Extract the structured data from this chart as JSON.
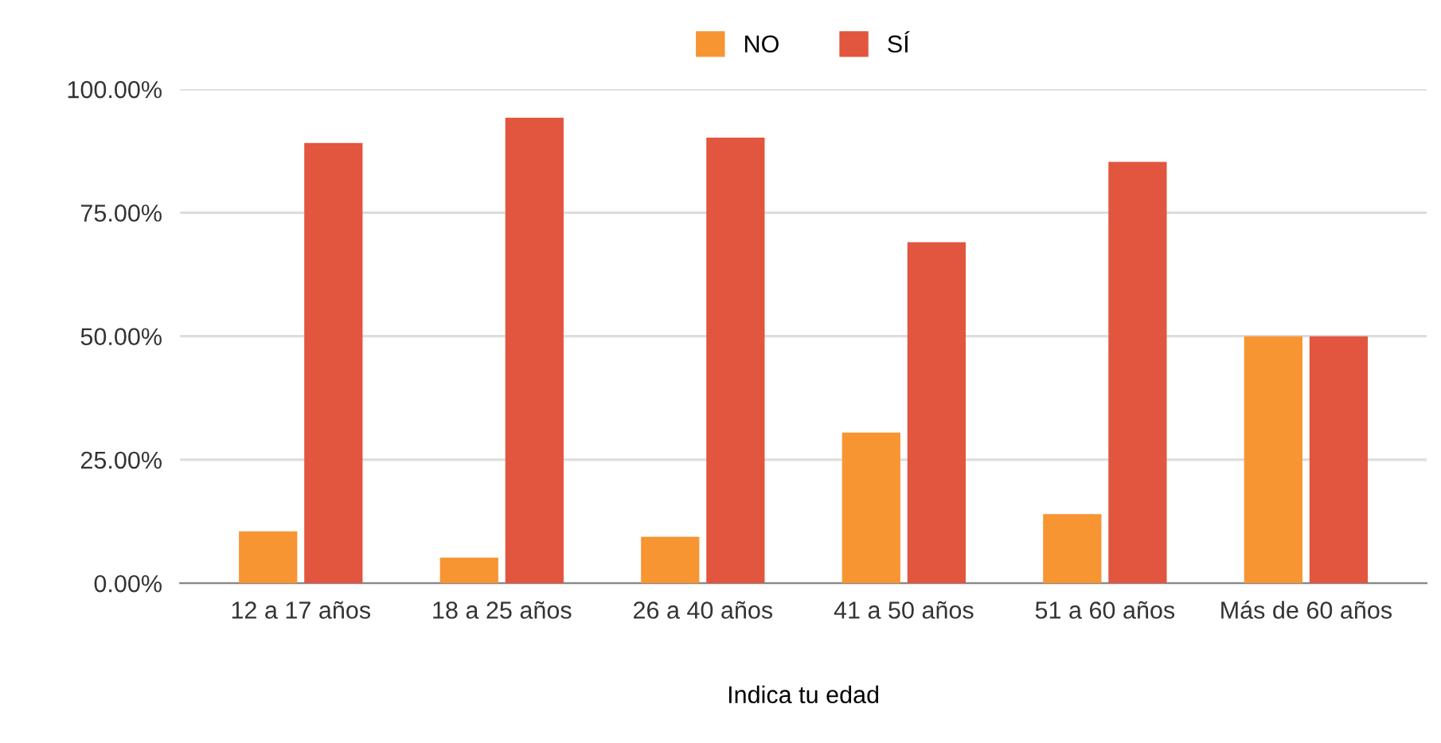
{
  "chart_data": {
    "type": "bar",
    "xlabel": "Indica tu edad",
    "categories": [
      "12 a 17 años",
      "18 a 25 años",
      "26 a 40 años",
      "41 a 50 años",
      "51 a 60 años",
      "Más de 60 años"
    ],
    "series": [
      {
        "name": "NO",
        "color": "#f79533",
        "values": [
          10.5,
          5.2,
          9.4,
          30.5,
          14.0,
          50.0
        ]
      },
      {
        "name": "SÍ",
        "color": "#e2553e",
        "values": [
          89.1,
          94.2,
          90.2,
          69.0,
          85.3,
          50.0
        ]
      }
    ],
    "ylim": [
      0,
      100
    ],
    "yticks": [
      {
        "value": 0,
        "label": "0.00%"
      },
      {
        "value": 25,
        "label": "25.00%"
      },
      {
        "value": 50,
        "label": "50.00%"
      },
      {
        "value": 75,
        "label": "75.00%"
      },
      {
        "value": 100,
        "label": "100.00%"
      }
    ],
    "grid": "y",
    "legend": "top"
  }
}
